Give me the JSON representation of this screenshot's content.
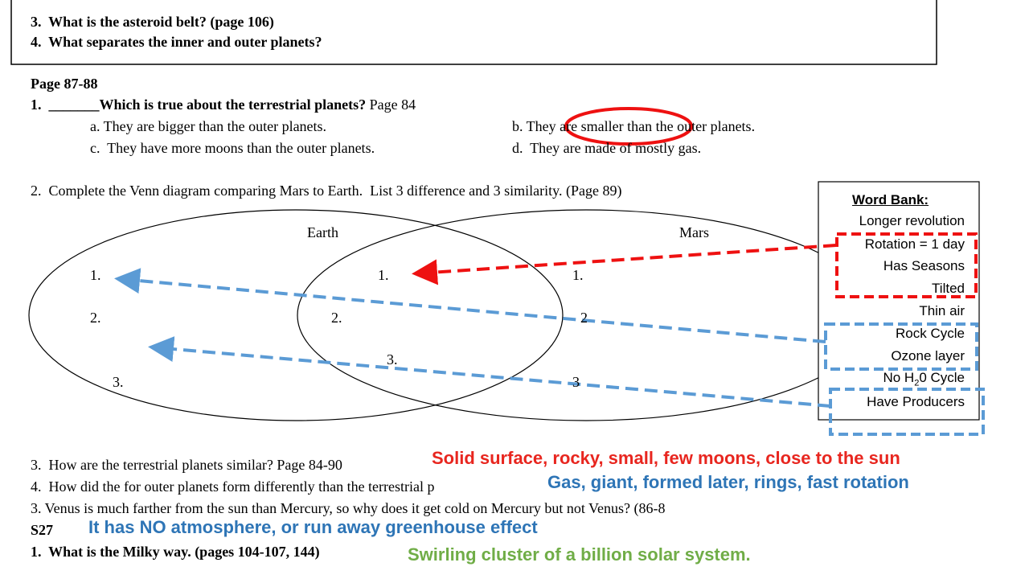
{
  "top_box": {
    "lines": [
      "3.  What is the asteroid belt? (page 106)",
      "4.  What separates the inner and outer planets?"
    ]
  },
  "section": {
    "heading": "Page 87-88",
    "question1": {
      "text": "1.  _______Which is true about the terrestrial planets?",
      "page": " Page 84",
      "options": [
        "a. They are bigger than the outer planets.",
        "b. They are smaller than the outer planets.",
        "c.  They have more moons than the outer planets.",
        "d.  They are made of mostly gas."
      ]
    },
    "question2": {
      "text": "2.  Complete the Venn diagram comparing Mars to Earth.  List 3 difference and 3 similarity. (Page 89)",
      "venn": {
        "left_label": "Earth",
        "right_label": "Mars",
        "left_items": [
          "1.",
          "2.",
          "3."
        ],
        "middle_items": [
          "1.",
          "2.",
          "3."
        ],
        "right_items": [
          "1.",
          "2",
          "3"
        ]
      }
    },
    "word_bank": {
      "title": "Word Bank:",
      "items": [
        "Longer revolution",
        "Rotation = 1 day",
        "Has Seasons",
        "Tilted",
        "Thin air",
        "Rock Cycle",
        "Ozone layer",
        {
          "text": "No H",
          "subscript": "2",
          "suffix": "0 Cycle"
        },
        "Have Producers"
      ]
    },
    "questions": [
      "3.  How are the terrestrial planets similar? Page 84-90",
      "4.  How did the for outer planets form differently than the terrestrial p",
      "3. Venus is much farther from the sun than Mercury, so why does it get cold on Mercury but not Venus? (86-8"
    ],
    "s27": {
      "label": "S27",
      "question": "1.  What is the Milky way. (pages 104-107, 144)"
    }
  },
  "answers": {
    "q3": "Solid surface, rocky, small, few moons, close to the sun",
    "q4": "Gas, giant, formed later, rings, fast rotation",
    "venus": "It has NO atmosphere, or run away greenhouse effect",
    "milky_way": "Swirling cluster of a billion solar system."
  }
}
